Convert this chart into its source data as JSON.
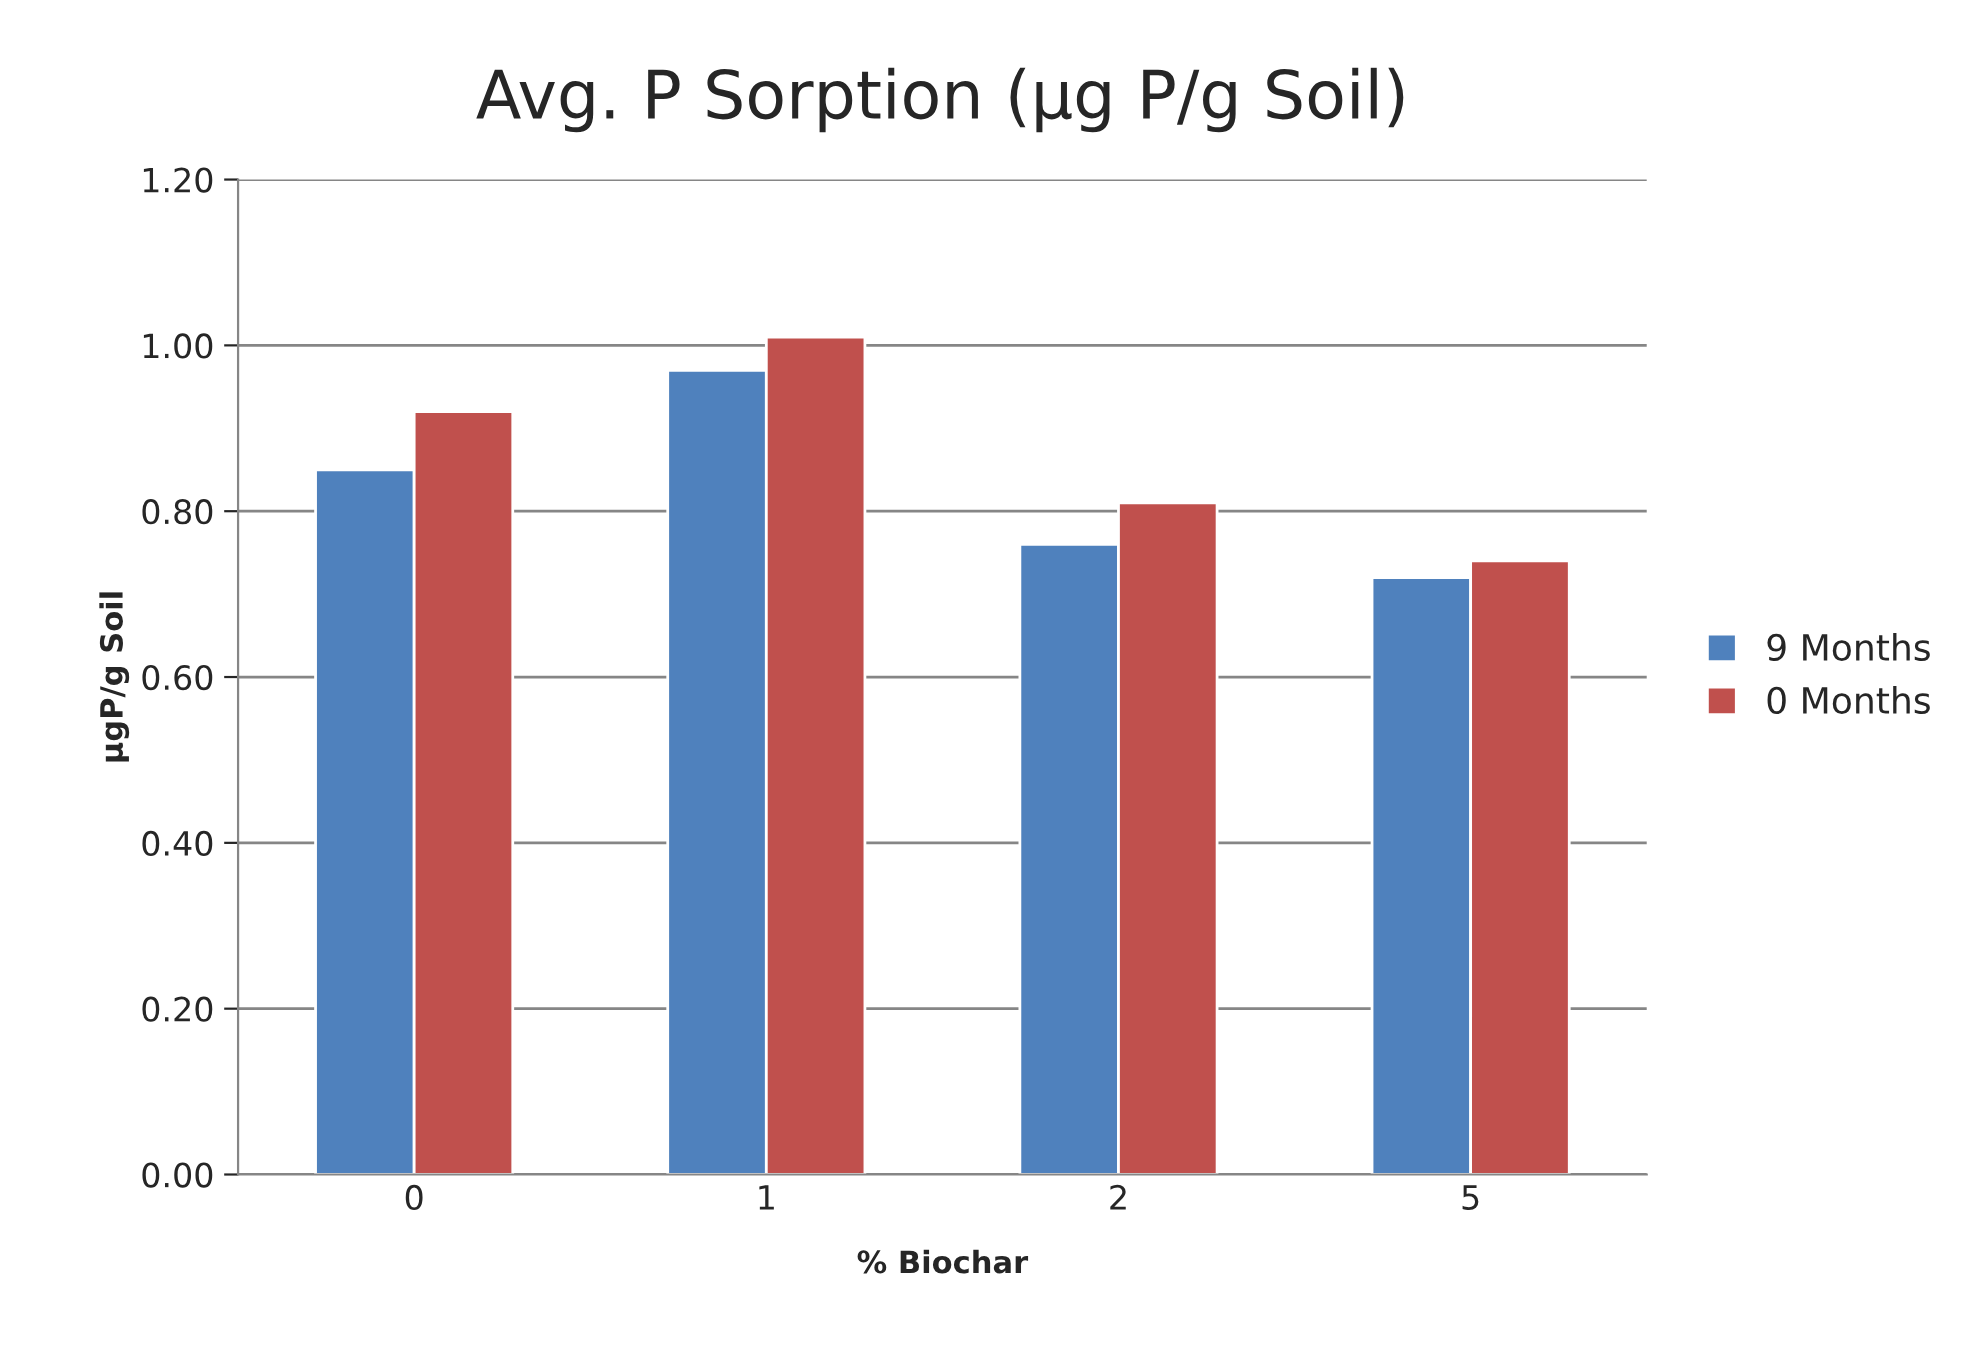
{
  "chart_data": {
    "type": "bar",
    "title": "Avg. P Sorption (µg P/g Soil)",
    "xlabel": "% Biochar",
    "ylabel": "µgP/g Soil",
    "categories": [
      "0",
      "1",
      "2",
      "5"
    ],
    "series": [
      {
        "name": "9 Months",
        "color": "#4f81bd",
        "values": [
          0.85,
          0.97,
          0.76,
          0.72
        ]
      },
      {
        "name": "0 Months",
        "color": "#c0504d",
        "values": [
          0.92,
          1.01,
          0.81,
          0.74
        ]
      }
    ],
    "ylim": [
      0,
      1.2
    ],
    "yticks": [
      {
        "value": 0,
        "label": "0.00"
      },
      {
        "value": 0.2,
        "label": "0.20"
      },
      {
        "value": 0.4,
        "label": "0.40"
      },
      {
        "value": 0.6,
        "label": "0.60"
      },
      {
        "value": 0.8,
        "label": "0.80"
      },
      {
        "value": 1.0,
        "label": "1.00"
      },
      {
        "value": 1.2,
        "label": "1.20"
      }
    ],
    "grid": "y",
    "legend": "right"
  }
}
